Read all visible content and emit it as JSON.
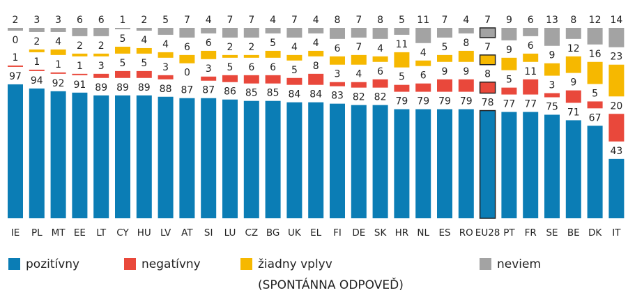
{
  "chart_data": {
    "type": "bar",
    "stacked": true,
    "categories": [
      "IE",
      "PL",
      "MT",
      "EE",
      "LT",
      "CY",
      "HU",
      "LV",
      "AT",
      "SI",
      "LU",
      "CZ",
      "BG",
      "UK",
      "EL",
      "FI",
      "DE",
      "SK",
      "HR",
      "NL",
      "ES",
      "RO",
      "EU28",
      "PT",
      "FR",
      "SE",
      "BE",
      "DK",
      "IT"
    ],
    "highlight": "EU28",
    "series": [
      {
        "name": "pozitívny",
        "color": "#0b7db5",
        "values": [
          97,
          94,
          92,
          91,
          89,
          89,
          89,
          88,
          87,
          87,
          86,
          85,
          85,
          84,
          84,
          83,
          82,
          82,
          79,
          79,
          79,
          79,
          78,
          77,
          77,
          75,
          71,
          67,
          43
        ]
      },
      {
        "name": "negatívny",
        "color": "#e9483b",
        "values": [
          1,
          1,
          1,
          1,
          3,
          5,
          5,
          3,
          0,
          3,
          5,
          6,
          6,
          5,
          8,
          3,
          4,
          6,
          5,
          6,
          9,
          9,
          8,
          5,
          11,
          3,
          9,
          5,
          20
        ]
      },
      {
        "name": "žiadny vplyv",
        "note": "(SPONTÁNNA ODPOVEĎ)",
        "color": "#f6b800",
        "values": [
          0,
          2,
          4,
          2,
          2,
          5,
          4,
          4,
          6,
          6,
          2,
          2,
          5,
          4,
          4,
          6,
          7,
          4,
          11,
          4,
          5,
          8,
          7,
          9,
          6,
          9,
          12,
          16,
          23
        ]
      },
      {
        "name": "neviem",
        "color": "#a3a3a3",
        "values": [
          2,
          3,
          3,
          6,
          6,
          1,
          2,
          5,
          7,
          4,
          7,
          7,
          4,
          7,
          4,
          8,
          7,
          8,
          5,
          11,
          7,
          4,
          7,
          9,
          6,
          13,
          8,
          12,
          14
        ]
      }
    ]
  }
}
